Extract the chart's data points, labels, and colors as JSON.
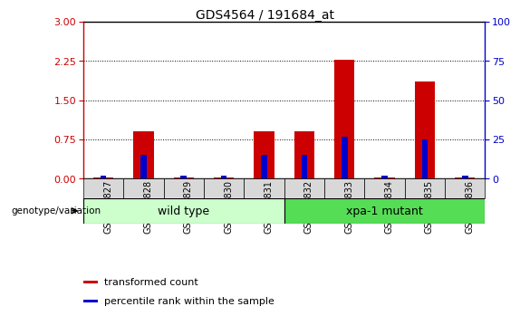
{
  "title": "GDS4564 / 191684_at",
  "samples": [
    "GSM958827",
    "GSM958828",
    "GSM958829",
    "GSM958830",
    "GSM958831",
    "GSM958832",
    "GSM958833",
    "GSM958834",
    "GSM958835",
    "GSM958836"
  ],
  "transformed_count": [
    0.02,
    0.9,
    0.02,
    0.02,
    0.9,
    0.9,
    2.27,
    0.02,
    1.85,
    0.02
  ],
  "percentile_rank": [
    2,
    15,
    2,
    2,
    15,
    15,
    27,
    2,
    25,
    2
  ],
  "ylim_left": [
    0,
    3
  ],
  "ylim_right": [
    0,
    100
  ],
  "yticks_left": [
    0,
    0.75,
    1.5,
    2.25,
    3
  ],
  "yticks_right": [
    0,
    25,
    50,
    75,
    100
  ],
  "bar_color_red": "#cc0000",
  "bar_color_blue": "#0000cc",
  "group1_label": "wild type",
  "group2_label": "xpa-1 mutant",
  "group1_color": "#ccffcc",
  "group2_color": "#55dd55",
  "legend_red": "transformed count",
  "legend_blue": "percentile rank within the sample",
  "left_axis_color": "#cc0000",
  "right_axis_color": "#0000cc",
  "bar_width": 0.5,
  "blue_bar_width": 0.15,
  "plot_bg": "#ffffff",
  "tick_bg": "#d8d8d8"
}
